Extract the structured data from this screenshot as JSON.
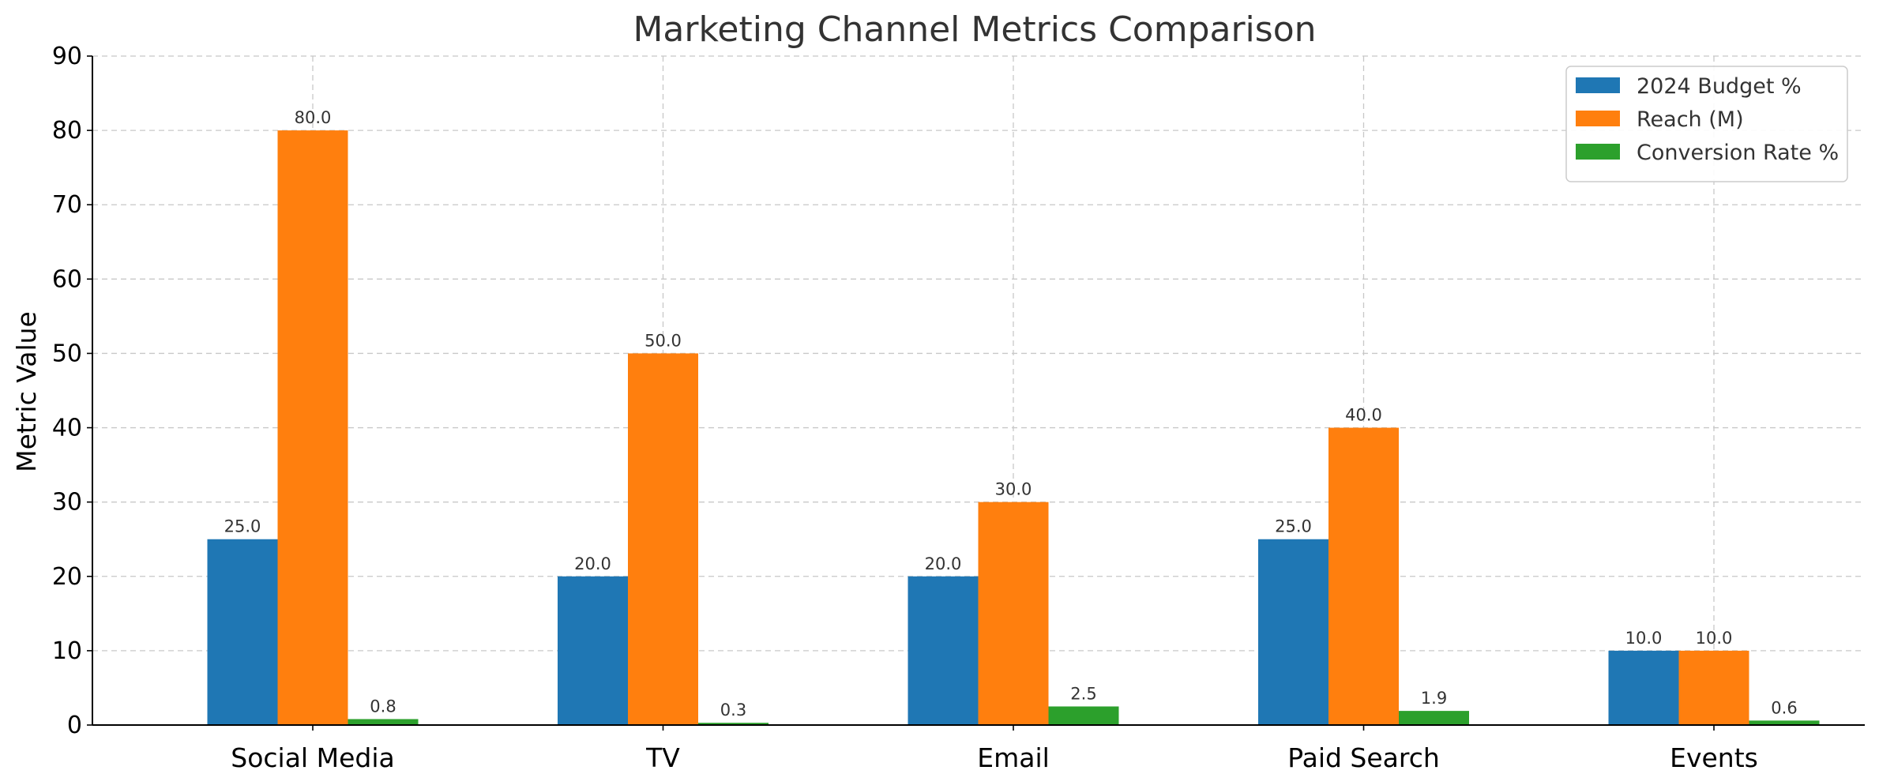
{
  "chart_data": {
    "type": "bar",
    "title": "Marketing Channel Metrics Comparison",
    "xlabel": "",
    "ylabel": "Metric Value",
    "categories": [
      "Social Media",
      "TV",
      "Email",
      "Paid Search",
      "Events"
    ],
    "series": [
      {
        "name": "2024 Budget %",
        "color": "#1f77b4",
        "values": [
          25.0,
          20.0,
          20.0,
          25.0,
          10.0
        ],
        "labels": [
          "25.0",
          "20.0",
          "20.0",
          "25.0",
          "10.0"
        ]
      },
      {
        "name": "Reach (M)",
        "color": "#ff7f0e",
        "values": [
          80.0,
          50.0,
          30.0,
          40.0,
          10.0
        ],
        "labels": [
          "80.0",
          "50.0",
          "30.0",
          "40.0",
          "10.0"
        ]
      },
      {
        "name": "Conversion Rate %",
        "color": "#2ca02c",
        "values": [
          0.8,
          0.3,
          2.5,
          1.9,
          0.6
        ],
        "labels": [
          "0.8",
          "0.3",
          "2.5",
          "1.9",
          "0.6"
        ]
      }
    ],
    "ylim": [
      0,
      90
    ],
    "yticks": [
      "0",
      "10",
      "20",
      "30",
      "40",
      "50",
      "60",
      "70",
      "80",
      "90"
    ],
    "grid": true,
    "legend_position": "top-right"
  }
}
